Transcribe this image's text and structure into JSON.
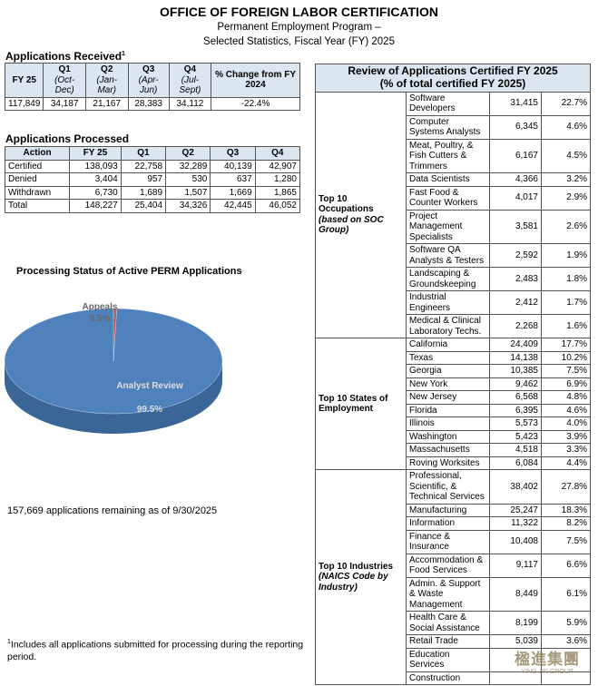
{
  "header": {
    "title": "OFFICE OF FOREIGN LABOR CERTIFICATION",
    "subtitle": [
      "Permanent Employment Program –",
      "Selected Statistics, Fiscal Year (FY) 2025"
    ]
  },
  "received": {
    "heading": "Applications Received",
    "note_mark": "1",
    "columns": [
      {
        "label": "FY 25"
      },
      {
        "label": "Q1",
        "sub": "(Oct-Dec)"
      },
      {
        "label": "Q2",
        "sub": "(Jan-Mar)"
      },
      {
        "label": "Q3",
        "sub": "(Apr-Jun)"
      },
      {
        "label": "Q4",
        "sub": "(Jul-Sept)"
      },
      {
        "label": "% Change from FY 2024"
      }
    ],
    "row": [
      "117,849",
      "34,187",
      "21,167",
      "28,383",
      "34,112",
      "-22.4%"
    ]
  },
  "processed": {
    "heading": "Applications Processed",
    "columns": [
      "Action",
      "FY 25",
      "Q1",
      "Q2",
      "Q3",
      "Q4"
    ],
    "rows": [
      [
        "Certified",
        "138,093",
        "22,758",
        "32,289",
        "40,139",
        "42,907"
      ],
      [
        "Denied",
        "3,404",
        "957",
        "530",
        "637",
        "1,280"
      ],
      [
        "Withdrawn",
        "6,730",
        "1,689",
        "1,507",
        "1,669",
        "1,865"
      ],
      [
        "Total",
        "148,227",
        "25,404",
        "34,326",
        "42,445",
        "46,052"
      ]
    ]
  },
  "chart_data": {
    "type": "pie",
    "title": "Processing Status of Active PERM Applications",
    "categories": [
      "Appeals",
      "Analyst Review"
    ],
    "values": [
      0.5,
      99.5
    ],
    "value_labels": [
      "0.5%",
      "99.5%"
    ],
    "colors": [
      "#c0504d",
      "#4f81bd"
    ]
  },
  "remaining": "157,669 applications remaining as of 9/30/2025",
  "footnote": {
    "mark": "1",
    "text": "Includes all applications submitted for processing during the reporting period."
  },
  "review": {
    "title": "Review of Applications Certified FY 2025",
    "subtitle": "(% of total certified FY 2025)",
    "groups": [
      {
        "label": "Top 10 Occupations",
        "sublabel": "(based on SOC Group)",
        "rows": [
          [
            "Software Developers",
            "31,415",
            "22.7%"
          ],
          [
            "Computer Systems Analysts",
            "6,345",
            "4.6%"
          ],
          [
            "Meat, Poultry, & Fish Cutters & Trimmers",
            "6,167",
            "4.5%"
          ],
          [
            "Data Scientists",
            "4,366",
            "3.2%"
          ],
          [
            "Fast Food & Counter Workers",
            "4,017",
            "2.9%"
          ],
          [
            "Project Management Specialists",
            "3,581",
            "2.6%"
          ],
          [
            "Software QA Analysts & Testers",
            "2,592",
            "1.9%"
          ],
          [
            "Landscaping & Groundskeeping",
            "2,483",
            "1.8%"
          ],
          [
            "Industrial Engineers",
            "2,412",
            "1.7%"
          ],
          [
            "Medical & Clinical Laboratory Techs.",
            "2,268",
            "1.6%"
          ]
        ]
      },
      {
        "label": "Top 10 States of Employment",
        "rows": [
          [
            "California",
            "24,409",
            "17.7%"
          ],
          [
            "Texas",
            "14,138",
            "10.2%"
          ],
          [
            "Georgia",
            "10,385",
            "7.5%"
          ],
          [
            "New York",
            "9,462",
            "6.9%"
          ],
          [
            "New Jersey",
            "6,568",
            "4.8%"
          ],
          [
            "Florida",
            "6,395",
            "4.6%"
          ],
          [
            "Illinois",
            "5,573",
            "4.0%"
          ],
          [
            "Washington",
            "5,423",
            "3.9%"
          ],
          [
            "Massachusetts",
            "4,518",
            "3.3%"
          ],
          [
            "Roving Worksites",
            "6,084",
            "4.4%"
          ]
        ]
      },
      {
        "label": "Top 10 Industries",
        "sublabel": "(NAICS Code by Industry)",
        "rows": [
          [
            "Professional, Scientific, & Technical Services",
            "38,402",
            "27.8%"
          ],
          [
            "Manufacturing",
            "25,247",
            "18.3%"
          ],
          [
            "Information",
            "11,322",
            "8.2%"
          ],
          [
            "Finance & Insurance",
            "10,408",
            "7.5%"
          ],
          [
            "Accommodation & Food Services",
            "9,117",
            "6.6%"
          ],
          [
            "Admin. & Support & Waste Management",
            "8,449",
            "6.1%"
          ],
          [
            "Health Care & Social Assistance",
            "8,199",
            "5.9%"
          ],
          [
            "Retail Trade",
            "5,039",
            "3.6%"
          ],
          [
            "Education Services"
          ],
          [
            "Construction"
          ]
        ]
      }
    ]
  },
  "watermark": {
    "text": "楹進集團",
    "sub": "YING JIN GROUP"
  }
}
